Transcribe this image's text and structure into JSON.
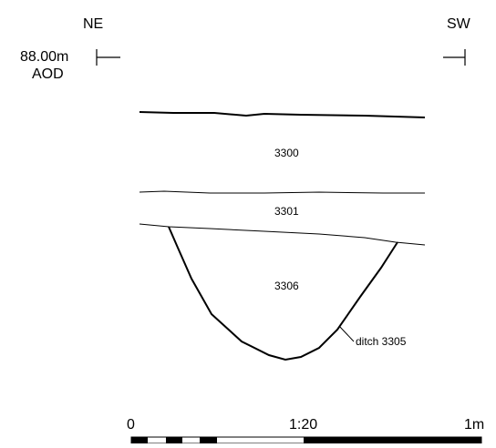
{
  "orientation": {
    "left": "NE",
    "right": "SW"
  },
  "datum": {
    "height": "88.00m",
    "unit": "AOD"
  },
  "layers": {
    "upper": "3300",
    "middle": "3301",
    "fill": "3306"
  },
  "feature_label": "ditch 3305",
  "scale": {
    "ratio": "1:20",
    "start": "0",
    "end": "1m"
  },
  "colors": {
    "ink": "#000000",
    "paper": "#ffffff"
  }
}
